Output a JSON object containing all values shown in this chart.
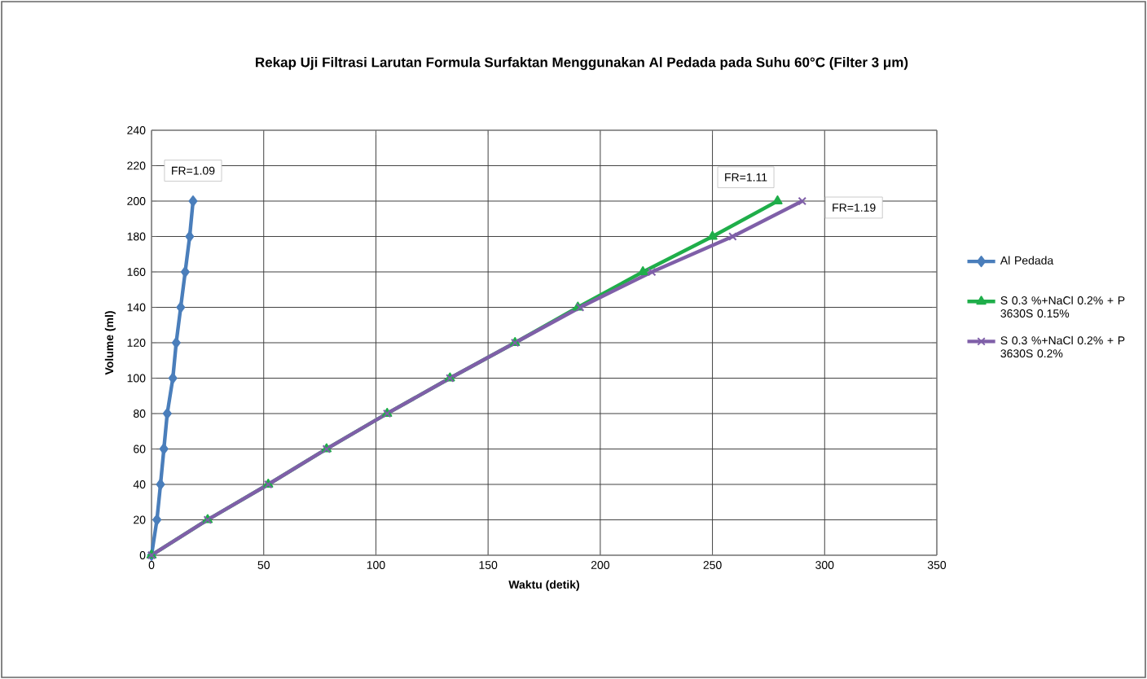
{
  "chart_data": {
    "type": "line",
    "title": "Rekap Uji Filtrasi Larutan Formula Surfaktan Menggunakan Al Pedada pada Suhu  60°C (Filter 3 μm)",
    "xlabel": "Waktu (detik)",
    "ylabel": "Volume (ml)",
    "series": [
      {
        "name": "Al Pedada",
        "color": "#4a7ebb",
        "marker": "diamond",
        "x": [
          0,
          2.4,
          4,
          5.5,
          7,
          9.5,
          11,
          13,
          15,
          17,
          18.5
        ],
        "values": [
          0,
          20,
          40,
          60,
          80,
          100,
          120,
          140,
          160,
          180,
          200
        ]
      },
      {
        "name": "S 0.3 %+NaCl 0.2% + P 3630S 0.15%",
        "color": "#1fae4a",
        "marker": "triangle",
        "x": [
          0,
          25,
          52,
          78,
          105,
          133,
          162,
          190,
          219,
          250,
          279
        ],
        "values": [
          0,
          20,
          40,
          60,
          80,
          100,
          120,
          140,
          160,
          180,
          200
        ]
      },
      {
        "name": "S 0.3 %+NaCl 0.2% + P 3630S 0.2%",
        "color": "#7f5fa8",
        "marker": "cross",
        "x": [
          0,
          25,
          52,
          78,
          105,
          133,
          162,
          191,
          223,
          259,
          290
        ],
        "values": [
          0,
          20,
          40,
          60,
          80,
          100,
          120,
          140,
          160,
          180,
          200
        ]
      }
    ],
    "annotations": [
      {
        "text": "FR=1.09",
        "x": 18.5,
        "y": 200
      },
      {
        "text": "FR=1.11",
        "x": 279,
        "y": 200
      },
      {
        "text": "FR=1.19",
        "x": 290,
        "y": 200
      }
    ],
    "xlim": [
      0,
      350
    ],
    "xticks": [
      0,
      50,
      100,
      150,
      200,
      250,
      300,
      350
    ],
    "ylim": [
      0,
      240
    ],
    "yticks": [
      0,
      20,
      40,
      60,
      80,
      100,
      120,
      140,
      160,
      180,
      200,
      220,
      240
    ],
    "grid": true,
    "legend": "right",
    "line_style": "solid"
  }
}
